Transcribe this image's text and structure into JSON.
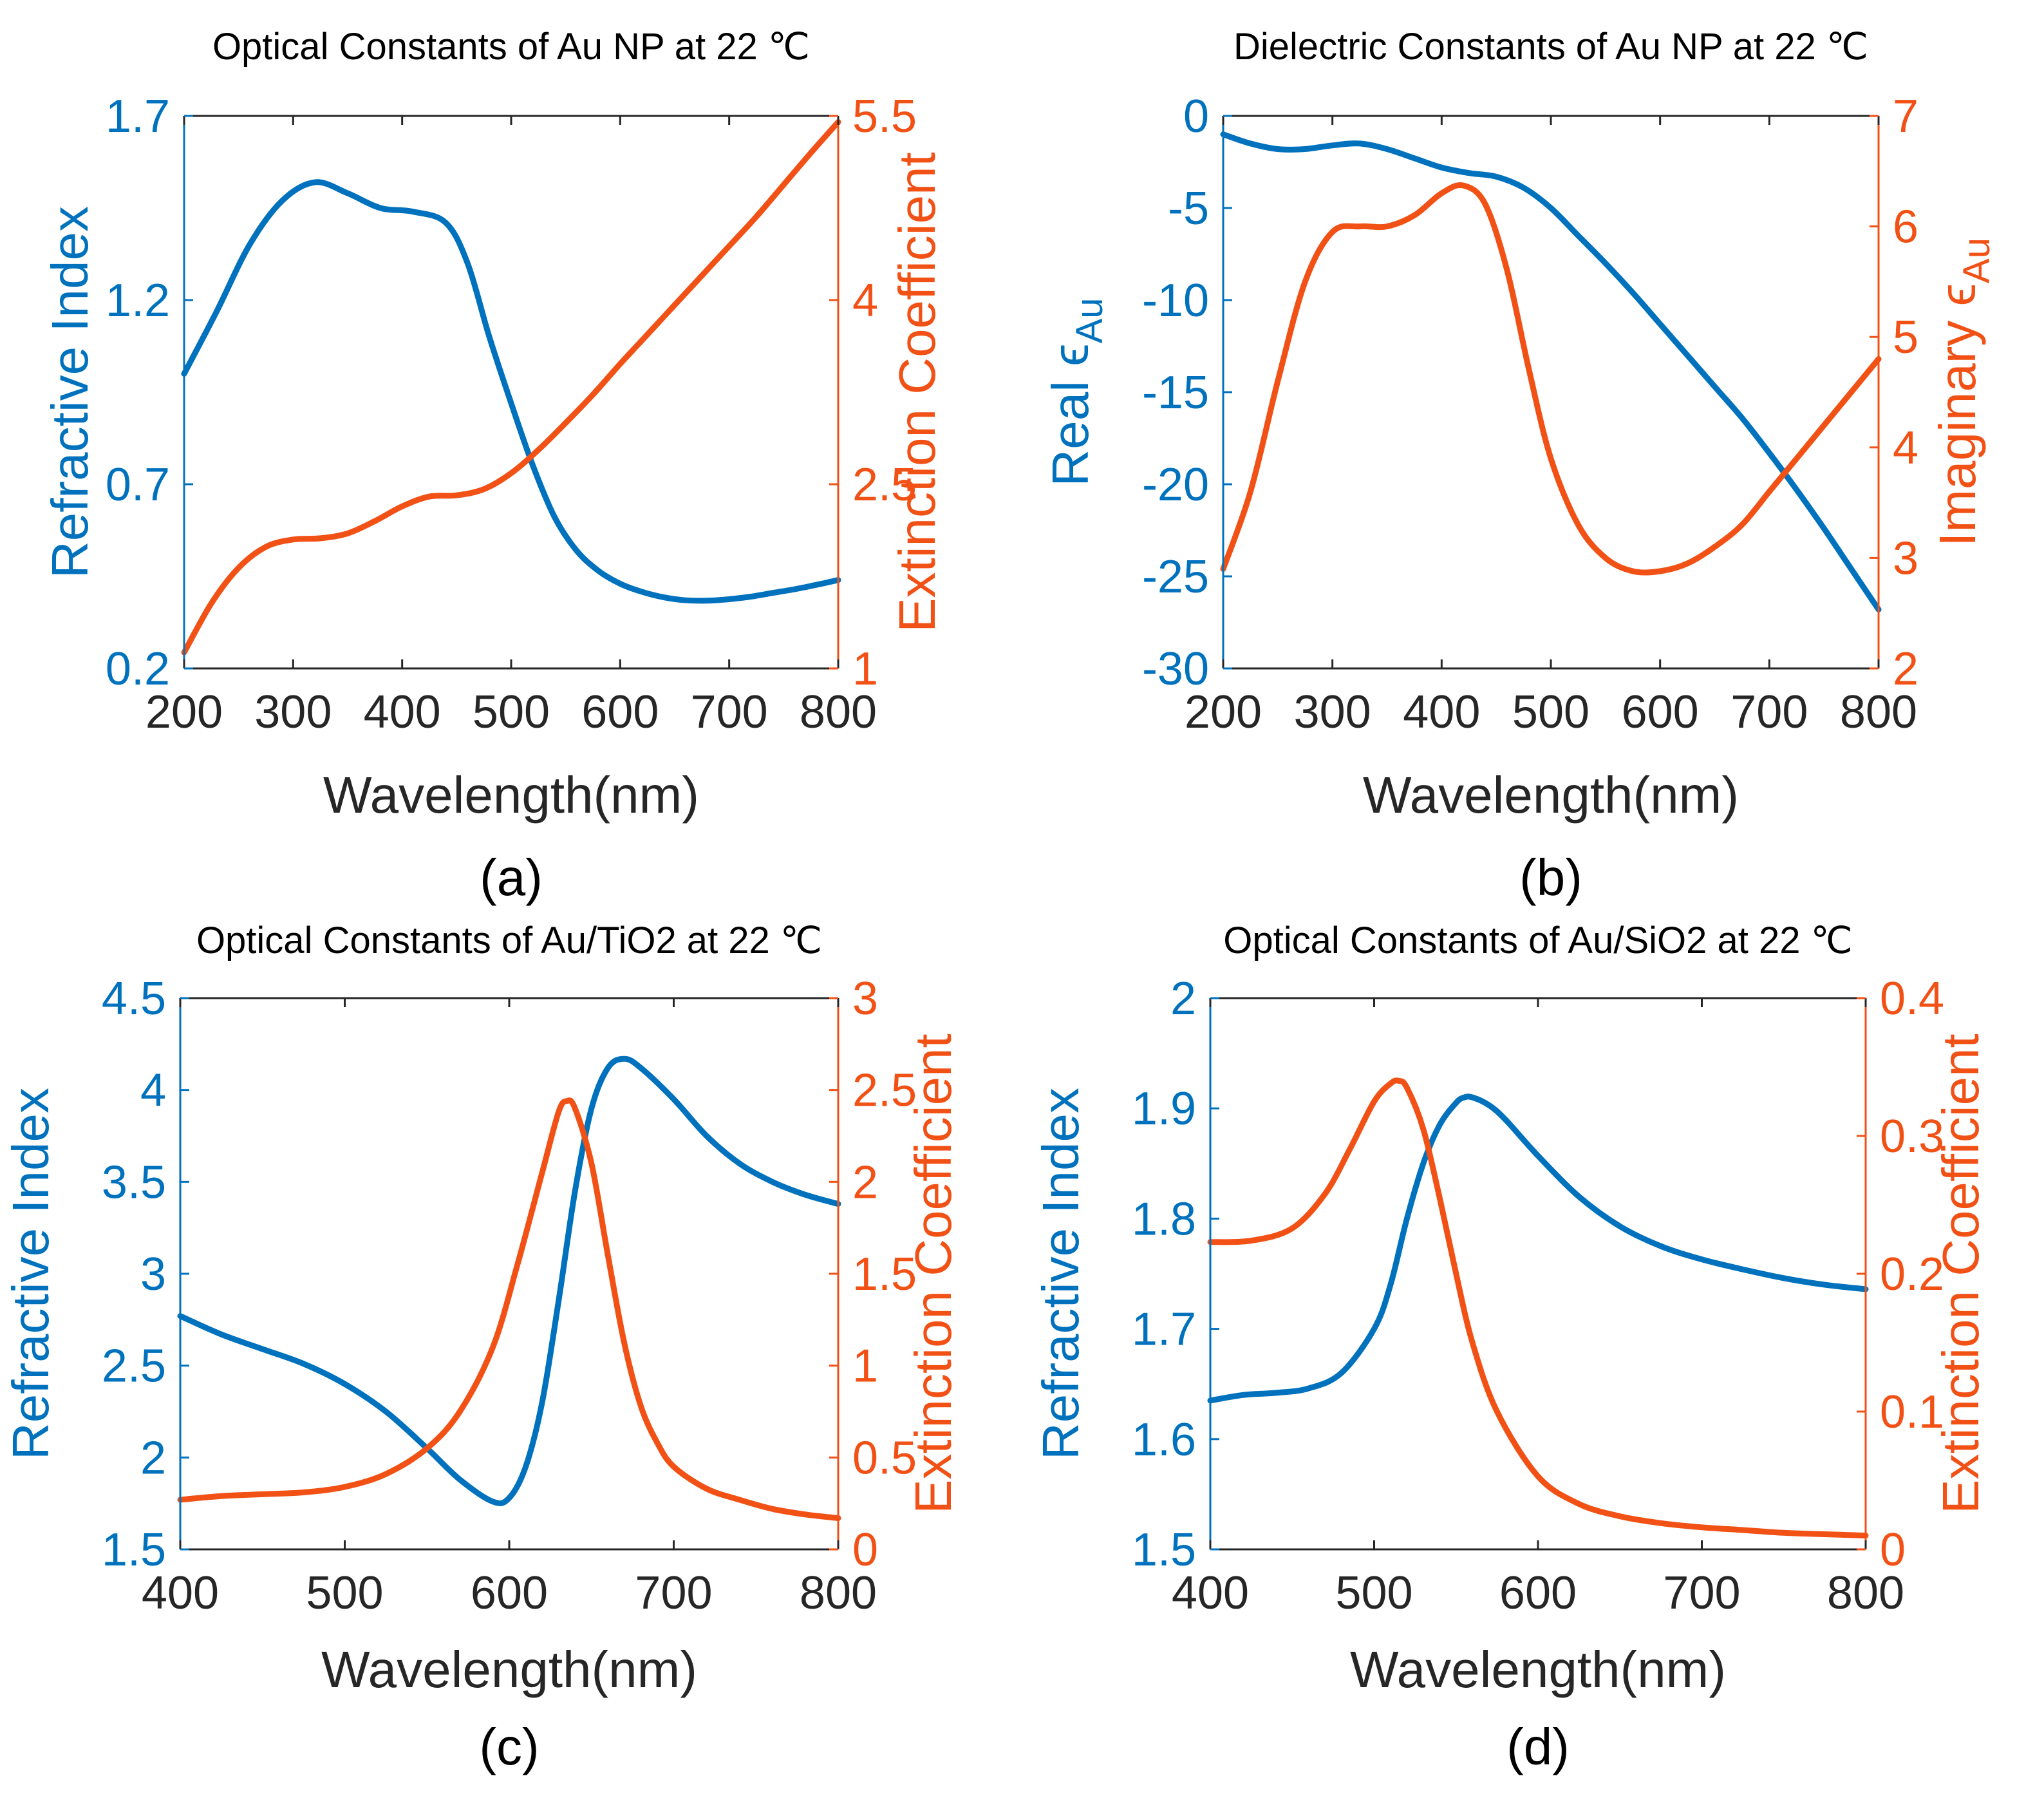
{
  "colors": {
    "left": "#0072BD",
    "right": "#F25116",
    "text": "#262626"
  },
  "chart_data": [
    {
      "panel": "(a)",
      "type": "line",
      "title": "Optical Constants of Au NP at 22 ℃",
      "xlabel": "Wavelength(nm)",
      "ylabel_left": "Refractive Index",
      "ylabel_right": "Extinction Coefficient",
      "xlim": [
        200,
        800
      ],
      "ylim_left": [
        0.2,
        1.7
      ],
      "ylim_right": [
        1,
        5.5
      ],
      "xticks": [
        "200",
        "300",
        "400",
        "500",
        "600",
        "700",
        "800"
      ],
      "yticks_left": [
        "0.2",
        "0.7",
        "1.2",
        "1.7"
      ],
      "yticks_right": [
        "1",
        "2.5",
        "4",
        "5.5"
      ],
      "series": [
        {
          "axis": "left",
          "x": [
            200,
            230,
            260,
            290,
            320,
            350,
            380,
            410,
            440,
            460,
            480,
            500,
            520,
            540,
            560,
            580,
            600,
            620,
            640,
            660,
            680,
            700,
            720,
            740,
            760,
            780,
            800
          ],
          "y": [
            1.0,
            1.17,
            1.35,
            1.47,
            1.52,
            1.49,
            1.45,
            1.44,
            1.41,
            1.3,
            1.1,
            0.92,
            0.75,
            0.61,
            0.52,
            0.465,
            0.43,
            0.408,
            0.393,
            0.385,
            0.384,
            0.388,
            0.395,
            0.405,
            0.415,
            0.427,
            0.44
          ]
        },
        {
          "axis": "right",
          "x": [
            200,
            225,
            250,
            275,
            300,
            325,
            350,
            375,
            400,
            425,
            450,
            475,
            500,
            525,
            550,
            575,
            600,
            625,
            650,
            675,
            700,
            725,
            750,
            775,
            800
          ],
          "y": [
            1.13,
            1.53,
            1.82,
            1.99,
            2.05,
            2.06,
            2.1,
            2.2,
            2.32,
            2.4,
            2.41,
            2.46,
            2.59,
            2.78,
            3.0,
            3.23,
            3.48,
            3.72,
            3.96,
            4.2,
            4.44,
            4.68,
            4.94,
            5.2,
            5.45
          ]
        }
      ]
    },
    {
      "panel": "(b)",
      "type": "line",
      "title": "Dielectric Constants of Au NP at 22 ℃",
      "xlabel": "Wavelength(nm)",
      "ylabel_left": "Real ϵ",
      "ylabel_left_sub": "Au",
      "ylabel_right": "Imaginary ϵ",
      "ylabel_right_sub": "Au",
      "xlim": [
        200,
        800
      ],
      "ylim_left": [
        -30,
        0
      ],
      "ylim_right": [
        2,
        7
      ],
      "xticks": [
        "200",
        "300",
        "400",
        "500",
        "600",
        "700",
        "800"
      ],
      "yticks_left": [
        "-30",
        "-25",
        "-20",
        "-15",
        "-10",
        "-5",
        "0"
      ],
      "yticks_right": [
        "2",
        "3",
        "4",
        "5",
        "6",
        "7"
      ],
      "series": [
        {
          "axis": "left",
          "x": [
            200,
            225,
            250,
            275,
            300,
            325,
            350,
            375,
            400,
            425,
            450,
            475,
            500,
            525,
            550,
            575,
            600,
            625,
            650,
            675,
            700,
            725,
            750,
            775,
            800
          ],
          "y": [
            -1.0,
            -1.5,
            -1.8,
            -1.8,
            -1.6,
            -1.5,
            -1.8,
            -2.3,
            -2.8,
            -3.1,
            -3.3,
            -3.9,
            -5.0,
            -6.5,
            -8.0,
            -9.6,
            -11.3,
            -13.0,
            -14.7,
            -16.4,
            -18.3,
            -20.3,
            -22.4,
            -24.6,
            -26.8
          ]
        },
        {
          "axis": "right",
          "x": [
            200,
            225,
            250,
            275,
            300,
            325,
            350,
            375,
            400,
            420,
            440,
            460,
            480,
            500,
            525,
            550,
            575,
            600,
            625,
            650,
            675,
            700,
            725,
            750,
            775,
            800
          ],
          "y": [
            2.9,
            3.6,
            4.6,
            5.5,
            5.95,
            6.0,
            6.0,
            6.1,
            6.3,
            6.37,
            6.2,
            5.6,
            4.7,
            3.9,
            3.3,
            3.0,
            2.88,
            2.88,
            2.95,
            3.1,
            3.3,
            3.6,
            3.9,
            4.2,
            4.5,
            4.8
          ]
        }
      ]
    },
    {
      "panel": "(c)",
      "type": "line",
      "title": "Optical Constants of Au/TiO2 at 22 ℃",
      "xlabel": "Wavelength(nm)",
      "ylabel_left": "Refractive Index",
      "ylabel_right": "Extinction Coefficient",
      "xlim": [
        400,
        800
      ],
      "ylim_left": [
        1.5,
        4.5
      ],
      "ylim_right": [
        0,
        3
      ],
      "xticks": [
        "400",
        "500",
        "600",
        "700",
        "800"
      ],
      "yticks_left": [
        "1.5",
        "2",
        "2.5",
        "3",
        "3.5",
        "4",
        "4.5"
      ],
      "yticks_right": [
        "0",
        "0.5",
        "1",
        "1.5",
        "2",
        "2.5",
        "3"
      ],
      "series": [
        {
          "axis": "left",
          "x": [
            400,
            425,
            450,
            475,
            500,
            525,
            550,
            570,
            590,
            600,
            610,
            620,
            630,
            640,
            650,
            660,
            670,
            680,
            700,
            720,
            740,
            760,
            780,
            800
          ],
          "y": [
            2.77,
            2.67,
            2.59,
            2.51,
            2.4,
            2.25,
            2.05,
            1.88,
            1.76,
            1.78,
            1.95,
            2.3,
            2.85,
            3.45,
            3.9,
            4.12,
            4.17,
            4.12,
            3.95,
            3.75,
            3.6,
            3.5,
            3.43,
            3.38
          ]
        },
        {
          "axis": "right",
          "x": [
            400,
            425,
            450,
            475,
            500,
            525,
            550,
            570,
            590,
            605,
            620,
            630,
            635,
            640,
            650,
            660,
            670,
            680,
            690,
            700,
            720,
            740,
            760,
            780,
            800
          ],
          "y": [
            0.27,
            0.29,
            0.3,
            0.31,
            0.34,
            0.41,
            0.55,
            0.75,
            1.1,
            1.55,
            2.05,
            2.38,
            2.44,
            2.4,
            2.1,
            1.6,
            1.12,
            0.78,
            0.58,
            0.45,
            0.33,
            0.27,
            0.22,
            0.19,
            0.17
          ]
        }
      ]
    },
    {
      "panel": "(d)",
      "type": "line",
      "title": "Optical Constants of Au/SiO2 at 22 ℃",
      "xlabel": "Wavelength(nm)",
      "ylabel_left": "Refractive Index",
      "ylabel_right": "Extinction Coefficient",
      "xlim": [
        400,
        800
      ],
      "ylim_left": [
        1.5,
        2
      ],
      "ylim_right": [
        0,
        0.4
      ],
      "xticks": [
        "400",
        "500",
        "600",
        "700",
        "800"
      ],
      "yticks_left": [
        "1.5",
        "1.6",
        "1.7",
        "1.8",
        "1.9",
        "2"
      ],
      "yticks_right": [
        "0",
        "0.1",
        "0.2",
        "0.3",
        "0.4"
      ],
      "series": [
        {
          "axis": "left",
          "x": [
            400,
            420,
            440,
            460,
            480,
            500,
            510,
            520,
            530,
            540,
            550,
            555,
            560,
            570,
            580,
            600,
            625,
            650,
            675,
            700,
            725,
            750,
            775,
            800
          ],
          "y": [
            1.635,
            1.64,
            1.642,
            1.646,
            1.66,
            1.7,
            1.74,
            1.8,
            1.85,
            1.885,
            1.905,
            1.91,
            1.91,
            1.903,
            1.89,
            1.857,
            1.82,
            1.793,
            1.775,
            1.763,
            1.754,
            1.746,
            1.74,
            1.736
          ]
        },
        {
          "axis": "right",
          "x": [
            400,
            425,
            450,
            470,
            485,
            500,
            510,
            515,
            520,
            530,
            540,
            550,
            560,
            575,
            600,
            625,
            650,
            675,
            700,
            725,
            750,
            775,
            800
          ],
          "y": [
            0.223,
            0.224,
            0.233,
            0.258,
            0.29,
            0.325,
            0.338,
            0.34,
            0.335,
            0.305,
            0.255,
            0.2,
            0.15,
            0.1,
            0.053,
            0.033,
            0.024,
            0.019,
            0.016,
            0.014,
            0.012,
            0.011,
            0.01
          ]
        }
      ]
    }
  ]
}
